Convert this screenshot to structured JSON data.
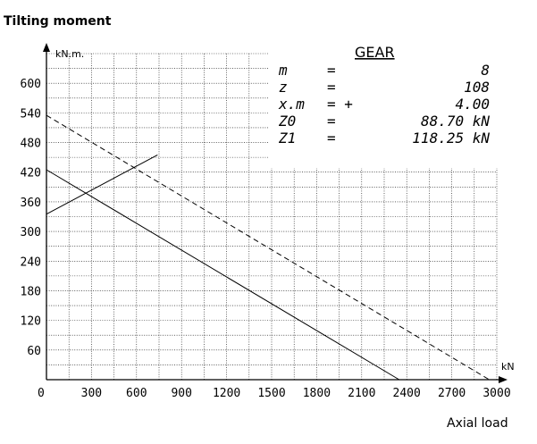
{
  "chart_data": {
    "type": "line",
    "xlabel": "Axial load",
    "ylabel": "Tilting moment",
    "x_unit": "kN",
    "y_unit": "kN.m.",
    "xlim": [
      0,
      3000
    ],
    "ylim": [
      0,
      660
    ],
    "x_ticks": [
      "0",
      "300",
      "600",
      "900",
      "1200",
      "1500",
      "1800",
      "2100",
      "2400",
      "2700",
      "3000"
    ],
    "y_ticks": [
      "60",
      "120",
      "180",
      "240",
      "300",
      "360",
      "420",
      "480",
      "540",
      "600"
    ],
    "grid": true,
    "series": [
      {
        "style": "solid",
        "x": [
          0,
          2350
        ],
        "y": [
          425,
          0
        ]
      },
      {
        "style": "dashed",
        "x": [
          0,
          2950
        ],
        "y": [
          535,
          0
        ]
      },
      {
        "style": "solid",
        "x": [
          0,
          740
        ],
        "y": [
          335,
          455
        ]
      }
    ],
    "gear": {
      "title": "GEAR",
      "rows": [
        {
          "name": "m",
          "eq": "=",
          "value": "8"
        },
        {
          "name": "z",
          "eq": "=",
          "value": "108"
        },
        {
          "name": "x.m",
          "eq": "= +",
          "value": "4.00"
        },
        {
          "name": "Z0",
          "eq": "=",
          "value": "88.70 kN"
        },
        {
          "name": "Z1",
          "eq": "=",
          "value": "118.25 kN"
        }
      ]
    }
  }
}
